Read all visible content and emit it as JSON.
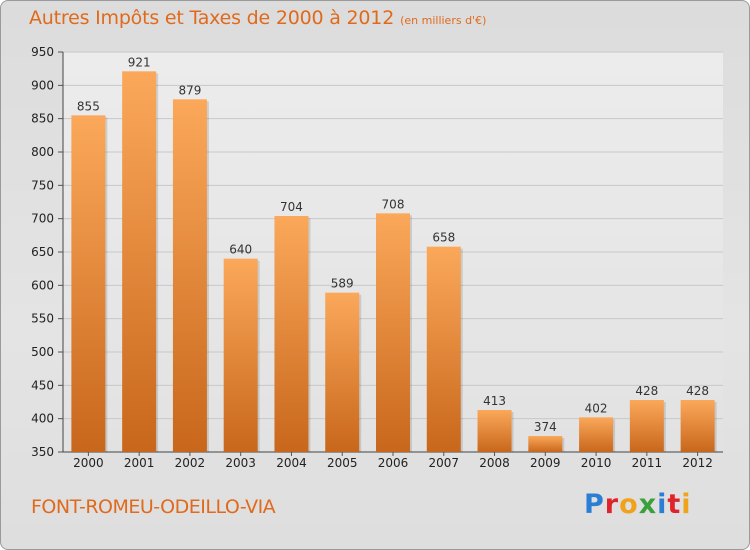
{
  "header": {
    "title": "Autres Impôts et Taxes de 2000 à 2012",
    "unit": "(en milliers d'€)"
  },
  "footer": {
    "commune": "FONT-ROMEU-ODEILLO-VIA",
    "logo": "Proxiti",
    "logo_colors": [
      "#2a7fd4",
      "#e0232b",
      "#f0a21a",
      "#3aa13a",
      "#2a7fd4",
      "#e0232b",
      "#f0a21a"
    ]
  },
  "colors": {
    "title": "#e06a1c",
    "bar_top": "#fba85a",
    "bar_bottom": "#c8671c"
  },
  "chart_data": {
    "type": "bar",
    "categories": [
      "2000",
      "2001",
      "2002",
      "2003",
      "2004",
      "2005",
      "2006",
      "2007",
      "2008",
      "2009",
      "2010",
      "2011",
      "2012"
    ],
    "values": [
      855,
      921,
      879,
      640,
      704,
      589,
      708,
      658,
      413,
      374,
      402,
      428,
      428
    ],
    "yticks": [
      350,
      400,
      450,
      500,
      550,
      600,
      650,
      700,
      750,
      800,
      850,
      900,
      950
    ],
    "ylim": [
      350,
      950
    ],
    "grid": true,
    "legend": "none"
  }
}
